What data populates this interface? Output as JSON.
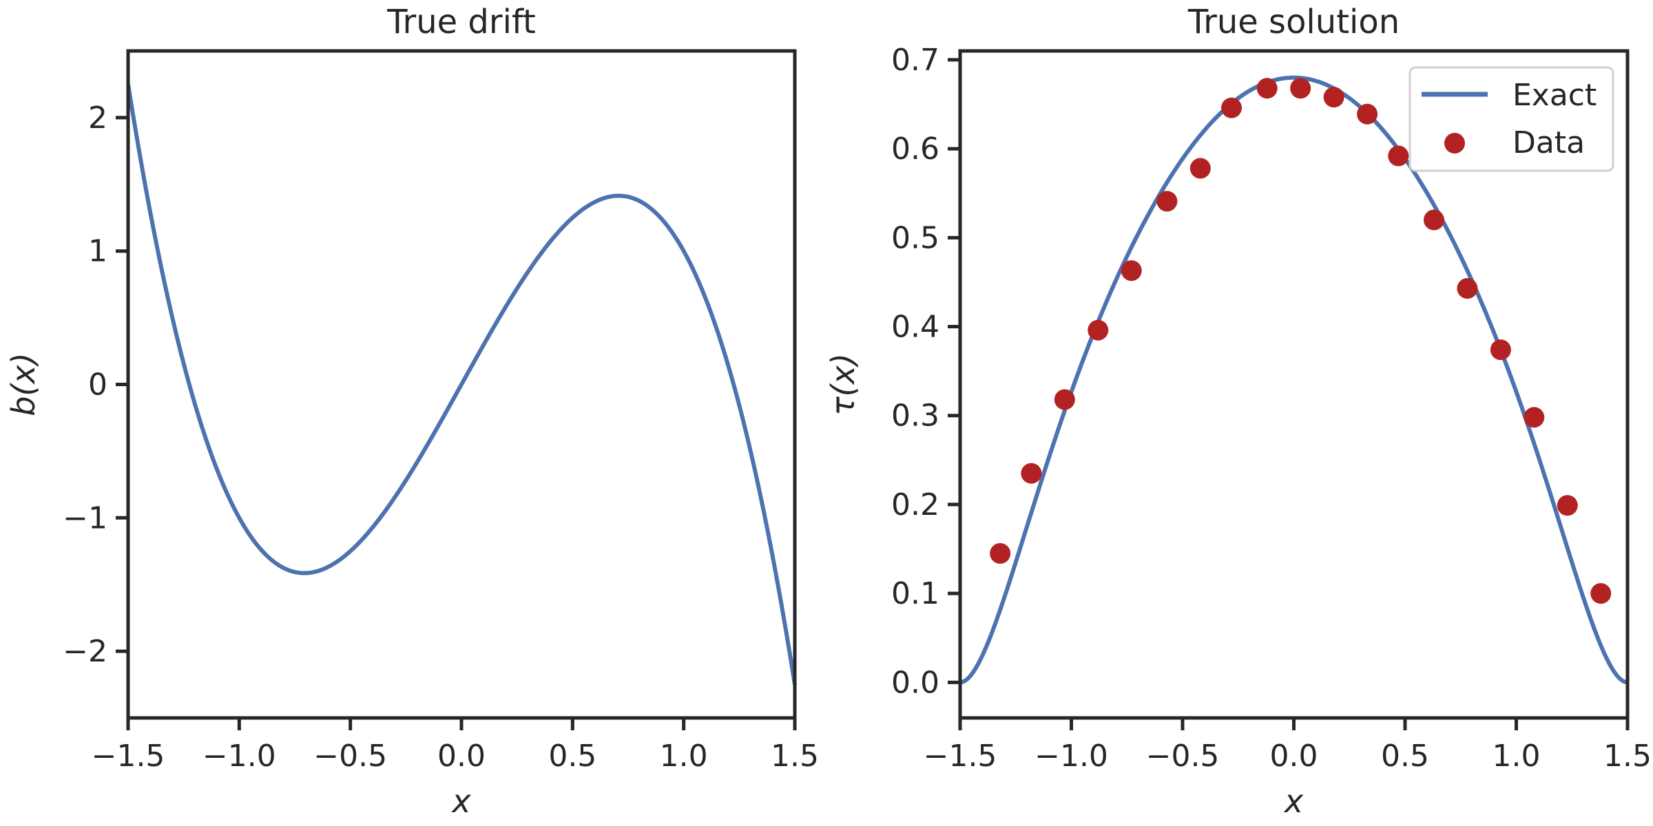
{
  "chart_data": [
    {
      "type": "line",
      "title": "True drift",
      "xlabel": "x",
      "ylabel": "b(x)",
      "xlim": [
        -1.5,
        1.5
      ],
      "ylim": [
        -2.5,
        2.5
      ],
      "xticks": [
        "−1.5",
        "−1.0",
        "−0.5",
        "0.0",
        "0.5",
        "1.0",
        "1.5"
      ],
      "yticks": [
        "−2",
        "−1",
        "0",
        "1",
        "2"
      ],
      "series": [
        {
          "name": "b(x)",
          "formula": "3x - 2x^3",
          "color": "#4c72b0",
          "x": [
            -1.5,
            -1.25,
            -1.0,
            -0.75,
            -0.5,
            -0.25,
            0.0,
            0.25,
            0.5,
            0.75,
            1.0,
            1.25,
            1.5
          ],
          "values": [
            2.25,
            0.16,
            -1.0,
            -1.41,
            -1.25,
            -0.72,
            0.0,
            0.72,
            1.25,
            1.41,
            1.0,
            -0.16,
            -2.25
          ]
        }
      ],
      "grid": false
    },
    {
      "type": "line",
      "title": "True solution",
      "xlabel": "x",
      "ylabel": "τ(x)",
      "xlim": [
        -1.5,
        1.5
      ],
      "ylim": [
        -0.04,
        0.71
      ],
      "xticks": [
        "−1.5",
        "−1.0",
        "−0.5",
        "0.0",
        "0.5",
        "1.0",
        "1.5"
      ],
      "yticks": [
        "0.0",
        "0.1",
        "0.2",
        "0.3",
        "0.4",
        "0.5",
        "0.6",
        "0.7"
      ],
      "legend": {
        "position": "upper right",
        "entries": [
          "Exact",
          "Data"
        ]
      },
      "series": [
        {
          "name": "Exact",
          "color": "#4c72b0",
          "x": [
            -1.5,
            -1.25,
            -1.0,
            -0.75,
            -0.5,
            -0.25,
            0.0,
            0.25,
            0.5,
            0.75,
            1.0,
            1.25,
            1.5
          ],
          "values": [
            0.0,
            0.19,
            0.34,
            0.47,
            0.57,
            0.64,
            0.68,
            0.64,
            0.57,
            0.47,
            0.34,
            0.19,
            0.0
          ]
        },
        {
          "name": "Data",
          "color": "#b22222",
          "marker": "circle",
          "x": [
            -1.32,
            -1.18,
            -1.03,
            -0.88,
            -0.73,
            -0.57,
            -0.42,
            -0.28,
            -0.12,
            0.03,
            0.18,
            0.33,
            0.47,
            0.63,
            0.78,
            0.93,
            1.08,
            1.23,
            1.38
          ],
          "values": [
            0.145,
            0.235,
            0.318,
            0.396,
            0.463,
            0.541,
            0.578,
            0.646,
            0.668,
            0.668,
            0.658,
            0.639,
            0.592,
            0.52,
            0.443,
            0.374,
            0.298,
            0.199,
            0.1
          ]
        }
      ],
      "grid": false
    }
  ],
  "legend": {
    "exact_label": "Exact",
    "data_label": "Data"
  },
  "plots": {
    "left": {
      "title": "True drift",
      "xlabel": "x",
      "ylabel": "b(x)"
    },
    "right": {
      "title": "True solution",
      "xlabel": "x",
      "ylabel": "τ(x)"
    }
  }
}
